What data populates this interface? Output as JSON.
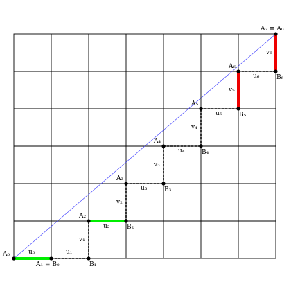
{
  "diagram": {
    "grid": {
      "cols": 7,
      "rows": 6
    },
    "diagonal_color": "#3333ff",
    "green_color": "#00ee00",
    "red_color": "#ee0000",
    "labels": {
      "A0": "A₀",
      "A1B0": "A₁ ≡ B₀",
      "B1": "B₁",
      "A2": "A₂",
      "B2": "B₂",
      "A3": "A₃",
      "B3": "B₃",
      "A4": "A₄",
      "B4": "B₄",
      "A5": "A₅",
      "B5": "B₅",
      "A6": "A₆",
      "B6": "B₆",
      "A7A0": "A₇ ≡ A₀",
      "u0": "u₀",
      "u1": "u₁",
      "u2": "u₂",
      "u3": "u₃",
      "u4": "u₄",
      "u5": "u₅",
      "u6": "u₆",
      "v1": "v₁",
      "v2": "v₂",
      "v3": "v₃",
      "v4": "v₄",
      "v5": "v₅",
      "v6": "v₆"
    }
  }
}
